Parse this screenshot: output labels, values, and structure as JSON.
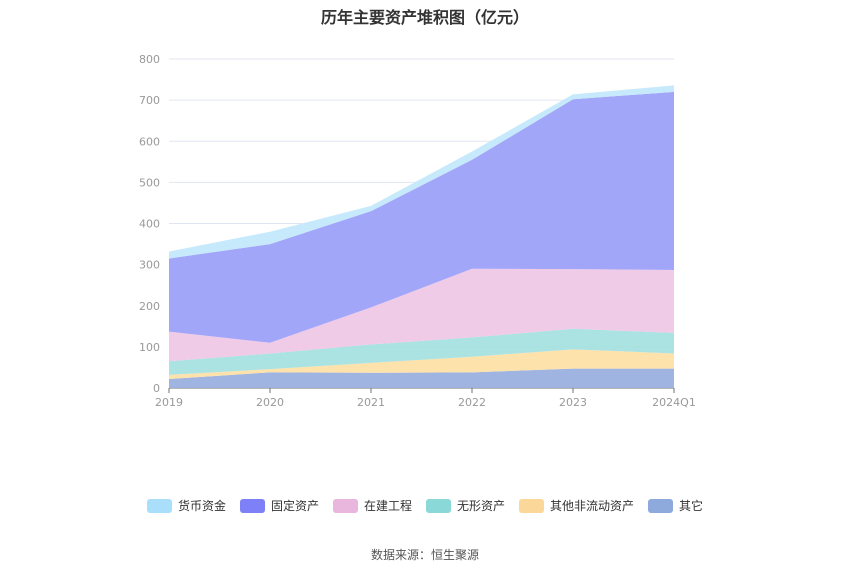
{
  "chart_data": {
    "type": "area",
    "stacked": true,
    "title": "历年主要资产堆积图（亿元）",
    "categories": [
      "2019",
      "2020",
      "2021",
      "2022",
      "2023",
      "2024Q1"
    ],
    "ylim": [
      0,
      800
    ],
    "yticks": [
      0,
      100,
      200,
      300,
      400,
      500,
      600,
      700,
      800
    ],
    "series": [
      {
        "name": "其它",
        "color": "#9bb0e0",
        "values": [
          22,
          38,
          37,
          38,
          47,
          47
        ]
      },
      {
        "name": "其他非流动资产",
        "color": "#fde0a8",
        "values": [
          10,
          8,
          24,
          38,
          47,
          37
        ]
      },
      {
        "name": "无形资产",
        "color": "#a6e0e0",
        "values": [
          33,
          38,
          45,
          47,
          50,
          50
        ]
      },
      {
        "name": "在建工程",
        "color": "#efc8e6",
        "values": [
          72,
          26,
          90,
          167,
          145,
          153
        ]
      },
      {
        "name": "固定资产",
        "color": "#9da1f9",
        "values": [
          178,
          240,
          234,
          265,
          413,
          433
        ]
      },
      {
        "name": "货币资金",
        "color": "#c3e8fb",
        "values": [
          17,
          30,
          13,
          20,
          12,
          16
        ]
      }
    ],
    "grid": true,
    "legend_position": "bottom"
  },
  "legend": [
    {
      "label": "货币资金",
      "color": "#a9dffb"
    },
    {
      "label": "固定资产",
      "color": "#7d80f6"
    },
    {
      "label": "在建工程",
      "color": "#e9b6dd"
    },
    {
      "label": "无形资产",
      "color": "#8ad8d8"
    },
    {
      "label": "其他非流动资产",
      "color": "#fcd79a"
    },
    {
      "label": "其它",
      "color": "#8ea9dc"
    }
  ],
  "source": "数据来源：恒生聚源"
}
